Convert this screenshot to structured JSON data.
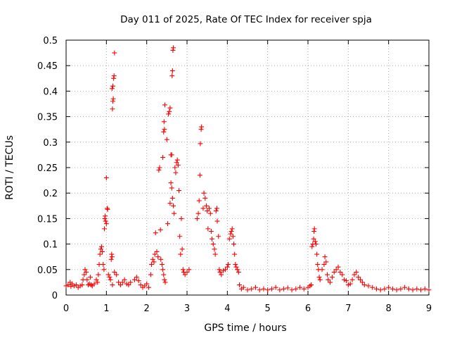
{
  "chart_data": {
    "type": "scatter",
    "title": "Day 011 of 2025, Rate Of TEC Index for receiver spja",
    "xlabel": "GPS time / hours",
    "ylabel": "ROTI / TECUs",
    "xlim": [
      0,
      9
    ],
    "ylim": [
      0,
      0.5
    ],
    "xticks": [
      0,
      1,
      2,
      3,
      4,
      5,
      6,
      7,
      8,
      9
    ],
    "xtick_labels": [
      "0",
      "1",
      "2",
      "3",
      "4",
      "5",
      "6",
      "7",
      "8",
      "9"
    ],
    "yticks": [
      0,
      0.05,
      0.1,
      0.15,
      0.2,
      0.25,
      0.3,
      0.35,
      0.4,
      0.45,
      0.5
    ],
    "ytick_labels": [
      "0",
      "0.05",
      "0.1",
      "0.15",
      "0.2",
      "0.25",
      "0.3",
      "0.35",
      "0.4",
      "0.45",
      "0.5"
    ],
    "grid": true,
    "marker": "+",
    "color": "#ff0000",
    "series": [
      {
        "name": "ROTI",
        "points": [
          [
            0.0,
            0.018
          ],
          [
            0.05,
            0.02
          ],
          [
            0.1,
            0.025
          ],
          [
            0.12,
            0.017
          ],
          [
            0.15,
            0.022
          ],
          [
            0.2,
            0.018
          ],
          [
            0.25,
            0.02
          ],
          [
            0.3,
            0.015
          ],
          [
            0.35,
            0.018
          ],
          [
            0.4,
            0.02
          ],
          [
            0.42,
            0.03
          ],
          [
            0.45,
            0.04
          ],
          [
            0.47,
            0.05
          ],
          [
            0.5,
            0.045
          ],
          [
            0.52,
            0.03
          ],
          [
            0.55,
            0.02
          ],
          [
            0.58,
            0.022
          ],
          [
            0.6,
            0.035
          ],
          [
            0.62,
            0.02
          ],
          [
            0.65,
            0.018
          ],
          [
            0.7,
            0.022
          ],
          [
            0.75,
            0.03
          ],
          [
            0.78,
            0.025
          ],
          [
            0.8,
            0.04
          ],
          [
            0.82,
            0.06
          ],
          [
            0.84,
            0.08
          ],
          [
            0.86,
            0.09
          ],
          [
            0.88,
            0.095
          ],
          [
            0.9,
            0.085
          ],
          [
            0.92,
            0.06
          ],
          [
            0.94,
            0.05
          ],
          [
            0.95,
            0.13
          ],
          [
            0.96,
            0.15
          ],
          [
            0.97,
            0.155
          ],
          [
            0.98,
            0.145
          ],
          [
            1.0,
            0.14
          ],
          [
            1.02,
            0.17
          ],
          [
            1.03,
            0.168
          ],
          [
            1.0,
            0.23
          ],
          [
            1.05,
            0.04
          ],
          [
            1.08,
            0.035
          ],
          [
            1.1,
            0.03
          ],
          [
            1.12,
            0.07
          ],
          [
            1.13,
            0.08
          ],
          [
            1.14,
            0.075
          ],
          [
            1.15,
            0.365
          ],
          [
            1.16,
            0.38
          ],
          [
            1.17,
            0.385
          ],
          [
            1.14,
            0.405
          ],
          [
            1.16,
            0.41
          ],
          [
            1.18,
            0.425
          ],
          [
            1.19,
            0.43
          ],
          [
            1.2,
            0.475
          ],
          [
            1.15,
            0.02
          ],
          [
            1.2,
            0.045
          ],
          [
            1.25,
            0.04
          ],
          [
            1.3,
            0.025
          ],
          [
            1.35,
            0.02
          ],
          [
            1.4,
            0.025
          ],
          [
            1.45,
            0.03
          ],
          [
            1.5,
            0.022
          ],
          [
            1.55,
            0.02
          ],
          [
            1.6,
            0.025
          ],
          [
            1.7,
            0.03
          ],
          [
            1.75,
            0.035
          ],
          [
            1.8,
            0.028
          ],
          [
            1.85,
            0.02
          ],
          [
            1.9,
            0.015
          ],
          [
            1.95,
            0.018
          ],
          [
            2.0,
            0.022
          ],
          [
            2.05,
            0.015
          ],
          [
            2.1,
            0.04
          ],
          [
            2.12,
            0.06
          ],
          [
            2.15,
            0.07
          ],
          [
            2.18,
            0.065
          ],
          [
            2.2,
            0.08
          ],
          [
            2.22,
            0.122
          ],
          [
            2.25,
            0.085
          ],
          [
            2.28,
            0.075
          ],
          [
            2.3,
            0.245
          ],
          [
            2.32,
            0.25
          ],
          [
            2.34,
            0.128
          ],
          [
            2.35,
            0.07
          ],
          [
            2.38,
            0.06
          ],
          [
            2.4,
            0.05
          ],
          [
            2.42,
            0.04
          ],
          [
            2.44,
            0.03
          ],
          [
            2.46,
            0.025
          ],
          [
            2.4,
            0.27
          ],
          [
            2.42,
            0.32
          ],
          [
            2.43,
            0.34
          ],
          [
            2.44,
            0.325
          ],
          [
            2.45,
            0.373
          ],
          [
            2.5,
            0.305
          ],
          [
            2.52,
            0.14
          ],
          [
            2.54,
            0.355
          ],
          [
            2.56,
            0.36
          ],
          [
            2.58,
            0.367
          ],
          [
            2.6,
            0.275
          ],
          [
            2.62,
            0.275
          ],
          [
            2.63,
            0.43
          ],
          [
            2.64,
            0.44
          ],
          [
            2.65,
            0.48
          ],
          [
            2.66,
            0.485
          ],
          [
            2.58,
            0.18
          ],
          [
            2.6,
            0.22
          ],
          [
            2.62,
            0.21
          ],
          [
            2.64,
            0.19
          ],
          [
            2.66,
            0.175
          ],
          [
            2.68,
            0.16
          ],
          [
            2.7,
            0.25
          ],
          [
            2.72,
            0.24
          ],
          [
            2.74,
            0.26
          ],
          [
            2.76,
            0.265
          ],
          [
            2.78,
            0.255
          ],
          [
            2.8,
            0.205
          ],
          [
            2.82,
            0.115
          ],
          [
            2.84,
            0.08
          ],
          [
            2.86,
            0.15
          ],
          [
            2.88,
            0.09
          ],
          [
            2.9,
            0.05
          ],
          [
            2.92,
            0.045
          ],
          [
            2.95,
            0.04
          ],
          [
            3.0,
            0.045
          ],
          [
            3.05,
            0.05
          ],
          [
            3.25,
            0.15
          ],
          [
            3.28,
            0.16
          ],
          [
            3.3,
            0.185
          ],
          [
            3.32,
            0.235
          ],
          [
            3.33,
            0.297
          ],
          [
            3.35,
            0.325
          ],
          [
            3.36,
            0.33
          ],
          [
            3.4,
            0.17
          ],
          [
            3.42,
            0.2
          ],
          [
            3.45,
            0.19
          ],
          [
            3.48,
            0.175
          ],
          [
            3.5,
            0.165
          ],
          [
            3.52,
            0.13
          ],
          [
            3.55,
            0.17
          ],
          [
            3.58,
            0.16
          ],
          [
            3.6,
            0.125
          ],
          [
            3.62,
            0.11
          ],
          [
            3.65,
            0.1
          ],
          [
            3.68,
            0.09
          ],
          [
            3.7,
            0.08
          ],
          [
            3.72,
            0.165
          ],
          [
            3.74,
            0.17
          ],
          [
            3.75,
            0.145
          ],
          [
            3.78,
            0.115
          ],
          [
            3.8,
            0.05
          ],
          [
            3.82,
            0.045
          ],
          [
            3.85,
            0.04
          ],
          [
            3.9,
            0.048
          ],
          [
            3.95,
            0.05
          ],
          [
            4.0,
            0.055
          ],
          [
            4.02,
            0.06
          ],
          [
            4.05,
            0.11
          ],
          [
            4.08,
            0.12
          ],
          [
            4.1,
            0.125
          ],
          [
            4.12,
            0.13
          ],
          [
            4.14,
            0.115
          ],
          [
            4.16,
            0.1
          ],
          [
            4.18,
            0.08
          ],
          [
            4.2,
            0.06
          ],
          [
            4.22,
            0.055
          ],
          [
            4.25,
            0.05
          ],
          [
            4.28,
            0.045
          ],
          [
            4.3,
            0.02
          ],
          [
            4.35,
            0.012
          ],
          [
            4.4,
            0.015
          ],
          [
            4.5,
            0.01
          ],
          [
            4.6,
            0.012
          ],
          [
            4.7,
            0.015
          ],
          [
            4.8,
            0.01
          ],
          [
            4.9,
            0.012
          ],
          [
            5.0,
            0.01
          ],
          [
            5.1,
            0.012
          ],
          [
            5.2,
            0.015
          ],
          [
            5.3,
            0.01
          ],
          [
            5.4,
            0.012
          ],
          [
            5.5,
            0.014
          ],
          [
            5.6,
            0.01
          ],
          [
            5.7,
            0.012
          ],
          [
            5.8,
            0.015
          ],
          [
            5.9,
            0.012
          ],
          [
            6.0,
            0.015
          ],
          [
            6.05,
            0.018
          ],
          [
            6.08,
            0.02
          ],
          [
            6.1,
            0.095
          ],
          [
            6.12,
            0.1
          ],
          [
            6.14,
            0.11
          ],
          [
            6.15,
            0.125
          ],
          [
            6.16,
            0.13
          ],
          [
            6.18,
            0.105
          ],
          [
            6.2,
            0.1
          ],
          [
            6.22,
            0.08
          ],
          [
            6.24,
            0.06
          ],
          [
            6.26,
            0.05
          ],
          [
            6.28,
            0.035
          ],
          [
            6.3,
            0.03
          ],
          [
            6.35,
            0.05
          ],
          [
            6.4,
            0.06
          ],
          [
            6.42,
            0.075
          ],
          [
            6.45,
            0.065
          ],
          [
            6.48,
            0.04
          ],
          [
            6.5,
            0.03
          ],
          [
            6.55,
            0.025
          ],
          [
            6.6,
            0.035
          ],
          [
            6.65,
            0.045
          ],
          [
            6.7,
            0.05
          ],
          [
            6.75,
            0.055
          ],
          [
            6.8,
            0.045
          ],
          [
            6.85,
            0.04
          ],
          [
            6.9,
            0.03
          ],
          [
            6.95,
            0.028
          ],
          [
            7.0,
            0.02
          ],
          [
            7.05,
            0.022
          ],
          [
            7.1,
            0.03
          ],
          [
            7.15,
            0.04
          ],
          [
            7.2,
            0.045
          ],
          [
            7.25,
            0.035
          ],
          [
            7.3,
            0.03
          ],
          [
            7.35,
            0.025
          ],
          [
            7.4,
            0.02
          ],
          [
            7.5,
            0.018
          ],
          [
            7.6,
            0.015
          ],
          [
            7.7,
            0.012
          ],
          [
            7.8,
            0.01
          ],
          [
            7.9,
            0.012
          ],
          [
            8.0,
            0.015
          ],
          [
            8.1,
            0.012
          ],
          [
            8.2,
            0.01
          ],
          [
            8.3,
            0.012
          ],
          [
            8.4,
            0.015
          ],
          [
            8.5,
            0.012
          ],
          [
            8.6,
            0.01
          ],
          [
            8.7,
            0.012
          ],
          [
            8.8,
            0.01
          ],
          [
            8.9,
            0.012
          ],
          [
            9.0,
            0.01
          ]
        ]
      }
    ]
  }
}
